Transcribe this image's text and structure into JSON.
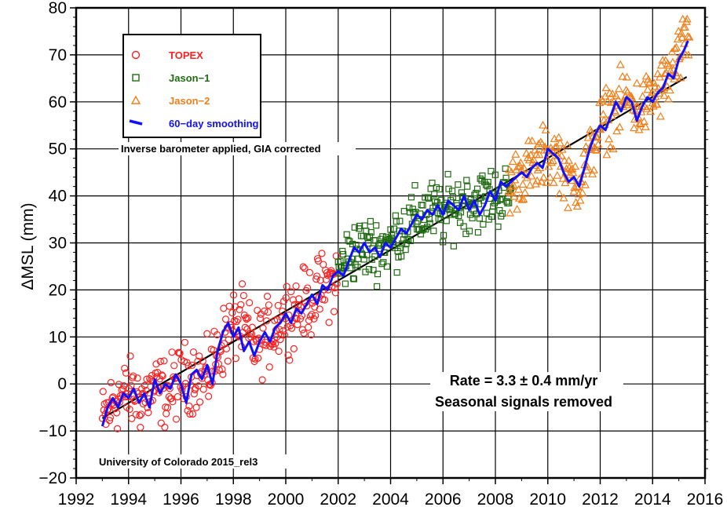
{
  "chart_data": {
    "type": "scatter",
    "ylabel": "ΔMSL (mm)",
    "xlim": [
      1992,
      2016
    ],
    "ylim": [
      -20,
      80
    ],
    "x_ticks": [
      "1992",
      "1994",
      "1996",
      "1998",
      "2000",
      "2002",
      "2004",
      "2006",
      "2008",
      "2010",
      "2012",
      "2014",
      "2016"
    ],
    "y_ticks": [
      "−20",
      "−10",
      "0",
      "10",
      "20",
      "30",
      "40",
      "50",
      "60",
      "70",
      "80"
    ],
    "grid": true,
    "legend_position": "top-left",
    "legend": [
      {
        "label": "TOPEX",
        "marker": "circle",
        "color": "#ff2020"
      },
      {
        "label": "Jason−1",
        "marker": "square",
        "color": "#1f6b12"
      },
      {
        "label": "Jason−2",
        "marker": "triangle",
        "color": "#f07f1a"
      },
      {
        "label": "60−day smoothing",
        "marker": "line",
        "color": "#1010ff"
      }
    ],
    "annotations": {
      "correction_note": "Inverse barometer applied, GIA corrected",
      "rate_prefix": "Rate = 3.3 ",
      "rate_pm": "±",
      "rate_suffix": " 0.4 mm/yr",
      "seasonal_note": "Seasonal signals removed",
      "source_note": "University of Colorado 2015_rel3"
    },
    "trend_line": {
      "x": [
        1993.0,
        2015.3
      ],
      "y": [
        -7.3,
        65.3
      ],
      "color": "#000000"
    },
    "series": [
      {
        "name": "TOPEX",
        "marker": "circle",
        "color": "#ff2020",
        "key_points": [
          [
            1993.0,
            -8
          ],
          [
            1993.5,
            -3
          ],
          [
            1994.0,
            -2
          ],
          [
            1994.5,
            -3
          ],
          [
            1995.0,
            -1
          ],
          [
            1995.5,
            -2
          ],
          [
            1996.0,
            1
          ],
          [
            1996.5,
            2
          ],
          [
            1997.0,
            1
          ],
          [
            1997.5,
            8
          ],
          [
            1997.9,
            12
          ],
          [
            1998.3,
            13
          ],
          [
            1998.8,
            8
          ],
          [
            1999.2,
            10
          ],
          [
            1999.6,
            12
          ],
          [
            2000.0,
            15
          ],
          [
            2000.5,
            16
          ],
          [
            2001.0,
            18
          ],
          [
            2001.5,
            21
          ],
          [
            2002.0,
            22
          ]
        ],
        "x_range": [
          1993.0,
          2002.0
        ],
        "spread": 4.5
      },
      {
        "name": "Jason−1",
        "marker": "square",
        "color": "#1f6b12",
        "key_points": [
          [
            2002.0,
            24
          ],
          [
            2002.5,
            28
          ],
          [
            2003.0,
            29
          ],
          [
            2003.5,
            29
          ],
          [
            2004.0,
            30
          ],
          [
            2004.5,
            33
          ],
          [
            2005.0,
            35
          ],
          [
            2005.5,
            37
          ],
          [
            2006.0,
            36
          ],
          [
            2006.5,
            38
          ],
          [
            2007.0,
            39
          ],
          [
            2007.5,
            39
          ],
          [
            2008.0,
            40
          ],
          [
            2008.5,
            40
          ]
        ],
        "x_range": [
          2002.0,
          2008.6
        ],
        "spread": 4.0
      },
      {
        "name": "Jason−2",
        "marker": "triangle",
        "color": "#f07f1a",
        "key_points": [
          [
            2008.5,
            42
          ],
          [
            2009.0,
            45
          ],
          [
            2009.5,
            46
          ],
          [
            2010.0,
            49
          ],
          [
            2010.5,
            48
          ],
          [
            2010.8,
            43
          ],
          [
            2011.3,
            44
          ],
          [
            2011.7,
            50
          ],
          [
            2012.0,
            55
          ],
          [
            2012.5,
            58
          ],
          [
            2013.0,
            61
          ],
          [
            2013.5,
            58
          ],
          [
            2014.0,
            61
          ],
          [
            2014.5,
            64
          ],
          [
            2015.0,
            69
          ],
          [
            2015.3,
            73
          ]
        ],
        "x_range": [
          2008.5,
          2015.4
        ],
        "spread": 4.0
      },
      {
        "name": "60−day smoothing",
        "marker": "line",
        "color": "#1010ff",
        "points": [
          [
            1993.0,
            -9
          ],
          [
            1993.2,
            -5
          ],
          [
            1993.4,
            -3
          ],
          [
            1993.6,
            -5
          ],
          [
            1993.8,
            -2
          ],
          [
            1994.0,
            -3
          ],
          [
            1994.2,
            -1
          ],
          [
            1994.4,
            -4
          ],
          [
            1994.6,
            -2
          ],
          [
            1994.8,
            -5
          ],
          [
            1995.0,
            1
          ],
          [
            1995.2,
            -2
          ],
          [
            1995.4,
            0
          ],
          [
            1995.6,
            -1
          ],
          [
            1995.8,
            2
          ],
          [
            1996.0,
            0
          ],
          [
            1996.2,
            -4
          ],
          [
            1996.4,
            2
          ],
          [
            1996.6,
            3
          ],
          [
            1996.8,
            1
          ],
          [
            1997.0,
            4
          ],
          [
            1997.2,
            0
          ],
          [
            1997.4,
            7
          ],
          [
            1997.6,
            11
          ],
          [
            1997.8,
            13
          ],
          [
            1998.0,
            10
          ],
          [
            1998.2,
            12
          ],
          [
            1998.4,
            7
          ],
          [
            1998.6,
            9
          ],
          [
            1998.8,
            6
          ],
          [
            1999.0,
            9
          ],
          [
            1999.2,
            11
          ],
          [
            1999.4,
            9
          ],
          [
            1999.6,
            12
          ],
          [
            1999.8,
            13
          ],
          [
            2000.0,
            15
          ],
          [
            2000.2,
            13
          ],
          [
            2000.4,
            16
          ],
          [
            2000.6,
            15
          ],
          [
            2000.8,
            17
          ],
          [
            2001.0,
            19
          ],
          [
            2001.2,
            17
          ],
          [
            2001.4,
            21
          ],
          [
            2001.6,
            20
          ],
          [
            2001.8,
            23
          ],
          [
            2002.0,
            24
          ],
          [
            2002.2,
            23
          ],
          [
            2002.4,
            26
          ],
          [
            2002.6,
            29
          ],
          [
            2002.8,
            28
          ],
          [
            2003.0,
            30
          ],
          [
            2003.2,
            28
          ],
          [
            2003.4,
            29
          ],
          [
            2003.6,
            27
          ],
          [
            2003.8,
            30
          ],
          [
            2004.0,
            29
          ],
          [
            2004.2,
            31
          ],
          [
            2004.4,
            33
          ],
          [
            2004.6,
            32
          ],
          [
            2004.8,
            34
          ],
          [
            2005.0,
            36
          ],
          [
            2005.2,
            35
          ],
          [
            2005.4,
            37
          ],
          [
            2005.6,
            36
          ],
          [
            2005.8,
            38
          ],
          [
            2006.0,
            36
          ],
          [
            2006.2,
            39
          ],
          [
            2006.4,
            38
          ],
          [
            2006.6,
            37
          ],
          [
            2006.8,
            40
          ],
          [
            2007.0,
            37
          ],
          [
            2007.2,
            39
          ],
          [
            2007.4,
            36
          ],
          [
            2007.6,
            38
          ],
          [
            2007.8,
            41
          ],
          [
            2008.0,
            39
          ],
          [
            2008.2,
            43
          ],
          [
            2008.4,
            42
          ],
          [
            2008.6,
            43
          ],
          [
            2008.8,
            44
          ],
          [
            2009.0,
            45
          ],
          [
            2009.2,
            44
          ],
          [
            2009.4,
            46
          ],
          [
            2009.6,
            47
          ],
          [
            2009.8,
            46
          ],
          [
            2010.0,
            50
          ],
          [
            2010.2,
            49
          ],
          [
            2010.4,
            48
          ],
          [
            2010.6,
            45
          ],
          [
            2010.8,
            43
          ],
          [
            2011.0,
            44
          ],
          [
            2011.2,
            42
          ],
          [
            2011.4,
            46
          ],
          [
            2011.6,
            50
          ],
          [
            2011.8,
            53
          ],
          [
            2012.0,
            55
          ],
          [
            2012.2,
            54
          ],
          [
            2012.4,
            57
          ],
          [
            2012.6,
            60
          ],
          [
            2012.8,
            58
          ],
          [
            2013.0,
            61
          ],
          [
            2013.2,
            60
          ],
          [
            2013.4,
            56
          ],
          [
            2013.6,
            59
          ],
          [
            2013.8,
            61
          ],
          [
            2014.0,
            60
          ],
          [
            2014.2,
            62
          ],
          [
            2014.4,
            63
          ],
          [
            2014.6,
            66
          ],
          [
            2014.8,
            65
          ],
          [
            2015.0,
            69
          ],
          [
            2015.2,
            71
          ],
          [
            2015.35,
            73
          ]
        ]
      }
    ]
  }
}
